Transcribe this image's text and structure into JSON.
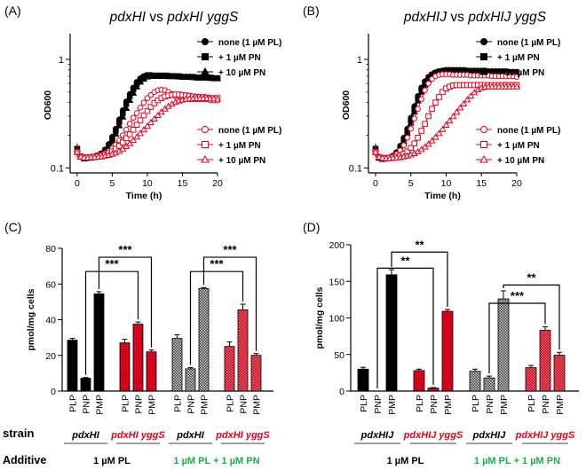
{
  "colors": {
    "black": "#000000",
    "red": "#e8001c",
    "green": "#19b04b"
  },
  "chart_data": [
    {
      "type": "line",
      "panel_label": "(A)",
      "title_parts": [
        "pdxHI",
        " vs ",
        "pdxHI yggS"
      ],
      "xlabel": "Time (h)",
      "ylabel": "OD600",
      "xlim": [
        -1,
        20
      ],
      "ylim": [
        0.09,
        1.6
      ],
      "yscale": "log",
      "xticks": [
        0,
        5,
        10,
        15,
        20
      ],
      "xtick_labels": [
        "0",
        "5",
        "10",
        "15",
        "20"
      ],
      "yticks": [
        0.1,
        1
      ],
      "ytick_labels": [
        "0.1",
        "1"
      ],
      "x": [
        0,
        0.5,
        1,
        1.5,
        2,
        2.5,
        3,
        3.5,
        4,
        4.5,
        5,
        5.5,
        6,
        6.5,
        7,
        7.5,
        8,
        8.5,
        9,
        9.5,
        10,
        10.5,
        11,
        11.5,
        12,
        12.5,
        13,
        13.5,
        14,
        14.5,
        15,
        15.5,
        16,
        16.5,
        17,
        17.5,
        18,
        18.5,
        19,
        19.5,
        20
      ],
      "legend_top": [
        "none (1 µM PL)",
        "+ 1 µM PN",
        "+ 10 µM PN"
      ],
      "legend_bottom": [
        "none (1 µM PL)",
        "+ 1 µM PN",
        "+ 10 µM PN"
      ],
      "series": [
        {
          "name": "pdxHI none (1 µM PL)",
          "marker": "circle",
          "fill": "filled",
          "color": "black",
          "values": [
            0.15,
            0.128,
            0.124,
            0.125,
            0.126,
            0.128,
            0.131,
            0.137,
            0.148,
            0.166,
            0.194,
            0.23,
            0.28,
            0.34,
            0.41,
            0.48,
            0.55,
            0.62,
            0.67,
            0.7,
            0.72,
            0.72,
            0.71,
            0.71,
            0.71,
            0.71,
            0.71,
            0.7,
            0.7,
            0.7,
            0.69,
            0.69,
            0.69,
            0.69,
            0.68,
            0.68,
            0.68,
            0.68,
            0.68,
            0.67,
            0.67
          ]
        },
        {
          "name": "pdxHI + 1 µM PN",
          "marker": "square",
          "fill": "filled",
          "color": "black",
          "values": [
            0.15,
            0.127,
            0.123,
            0.124,
            0.125,
            0.127,
            0.13,
            0.135,
            0.145,
            0.16,
            0.185,
            0.22,
            0.265,
            0.32,
            0.39,
            0.46,
            0.53,
            0.6,
            0.65,
            0.69,
            0.71,
            0.71,
            0.71,
            0.71,
            0.71,
            0.71,
            0.7,
            0.7,
            0.7,
            0.7,
            0.69,
            0.69,
            0.69,
            0.69,
            0.68,
            0.68,
            0.68,
            0.68,
            0.68,
            0.67,
            0.67
          ]
        },
        {
          "name": "pdxHI + 10 µM PN",
          "marker": "triangle",
          "fill": "filled",
          "color": "black",
          "values": [
            0.15,
            0.126,
            0.122,
            0.123,
            0.124,
            0.126,
            0.128,
            0.133,
            0.142,
            0.155,
            0.175,
            0.205,
            0.245,
            0.295,
            0.355,
            0.42,
            0.49,
            0.56,
            0.62,
            0.66,
            0.69,
            0.7,
            0.7,
            0.7,
            0.7,
            0.7,
            0.7,
            0.7,
            0.7,
            0.69,
            0.69,
            0.69,
            0.69,
            0.68,
            0.68,
            0.68,
            0.68,
            0.68,
            0.67,
            0.67,
            0.67
          ]
        },
        {
          "name": "pdxHI yggS none (1 µM PL)",
          "marker": "circle",
          "fill": "open",
          "color": "red",
          "values": [
            0.14,
            0.128,
            0.126,
            0.126,
            0.127,
            0.128,
            0.13,
            0.133,
            0.137,
            0.143,
            0.152,
            0.164,
            0.18,
            0.2,
            0.225,
            0.255,
            0.29,
            0.32,
            0.36,
            0.4,
            0.44,
            0.47,
            0.5,
            0.52,
            0.525,
            0.52,
            0.5,
            0.48,
            0.46,
            0.45,
            0.44,
            0.44,
            0.43,
            0.43,
            0.43,
            0.43,
            0.43,
            0.43,
            0.42,
            0.42,
            0.42
          ]
        },
        {
          "name": "pdxHI yggS + 1 µM PN",
          "marker": "square",
          "fill": "open",
          "color": "red",
          "values": [
            0.14,
            0.127,
            0.125,
            0.125,
            0.126,
            0.127,
            0.128,
            0.13,
            0.133,
            0.137,
            0.142,
            0.15,
            0.16,
            0.172,
            0.188,
            0.205,
            0.225,
            0.25,
            0.275,
            0.305,
            0.335,
            0.365,
            0.395,
            0.42,
            0.44,
            0.455,
            0.465,
            0.47,
            0.475,
            0.475,
            0.47,
            0.465,
            0.46,
            0.455,
            0.45,
            0.45,
            0.45,
            0.445,
            0.44,
            0.44,
            0.44
          ]
        },
        {
          "name": "pdxHI yggS + 10 µM PN",
          "marker": "triangle",
          "fill": "open",
          "color": "red",
          "values": [
            0.14,
            0.127,
            0.124,
            0.124,
            0.125,
            0.125,
            0.126,
            0.127,
            0.129,
            0.131,
            0.134,
            0.138,
            0.143,
            0.15,
            0.158,
            0.168,
            0.18,
            0.193,
            0.208,
            0.225,
            0.243,
            0.262,
            0.283,
            0.305,
            0.327,
            0.35,
            0.37,
            0.388,
            0.403,
            0.415,
            0.423,
            0.43,
            0.433,
            0.435,
            0.436,
            0.436,
            0.436,
            0.435,
            0.434,
            0.433,
            0.432
          ]
        }
      ]
    },
    {
      "type": "line",
      "panel_label": "(B)",
      "title_parts": [
        "pdxHIJ",
        " vs ",
        "pdxHIJ yggS"
      ],
      "xlabel": "Time (h)",
      "ylabel": "OD600",
      "xlim": [
        -1,
        20
      ],
      "ylim": [
        0.09,
        1.6
      ],
      "yscale": "log",
      "xticks": [
        0,
        5,
        10,
        15,
        20
      ],
      "xtick_labels": [
        "0",
        "5",
        "10",
        "15",
        "20"
      ],
      "yticks": [
        0.1,
        1
      ],
      "ytick_labels": [
        "0.1",
        "1"
      ],
      "x": [
        0,
        0.5,
        1,
        1.5,
        2,
        2.5,
        3,
        3.5,
        4,
        4.5,
        5,
        5.5,
        6,
        6.5,
        7,
        7.5,
        8,
        8.5,
        9,
        9.5,
        10,
        10.5,
        11,
        11.5,
        12,
        12.5,
        13,
        13.5,
        14,
        14.5,
        15,
        15.5,
        16,
        16.5,
        17,
        17.5,
        18,
        18.5,
        19,
        19.5,
        20
      ],
      "legend_top": [
        "none (1 µM PL)",
        "+ 1 µM PN",
        "+ 10 µM PN"
      ],
      "legend_bottom": [
        "none (1 µM PL)",
        "+ 1 µM PN",
        "+ 10 µM PN"
      ],
      "series": [
        {
          "name": "pdxHIJ none (1 µM PL)",
          "marker": "circle",
          "fill": "filled",
          "color": "black",
          "values": [
            0.15,
            0.125,
            0.122,
            0.123,
            0.125,
            0.13,
            0.14,
            0.16,
            0.19,
            0.23,
            0.29,
            0.37,
            0.46,
            0.55,
            0.63,
            0.69,
            0.73,
            0.76,
            0.78,
            0.79,
            0.8,
            0.8,
            0.8,
            0.8,
            0.8,
            0.8,
            0.79,
            0.79,
            0.79,
            0.79,
            0.79,
            0.79,
            0.78,
            0.78,
            0.78,
            0.78,
            0.78,
            0.78,
            0.77,
            0.77,
            0.77
          ]
        },
        {
          "name": "pdxHIJ + 1 µM PN",
          "marker": "square",
          "fill": "filled",
          "color": "black",
          "values": [
            0.15,
            0.124,
            0.121,
            0.122,
            0.124,
            0.128,
            0.137,
            0.155,
            0.183,
            0.22,
            0.275,
            0.35,
            0.44,
            0.53,
            0.61,
            0.67,
            0.72,
            0.75,
            0.77,
            0.78,
            0.79,
            0.79,
            0.79,
            0.79,
            0.79,
            0.79,
            0.78,
            0.78,
            0.78,
            0.78,
            0.78,
            0.78,
            0.77,
            0.77,
            0.77,
            0.77,
            0.77,
            0.77,
            0.76,
            0.76,
            0.76
          ]
        },
        {
          "name": "pdxHIJ + 10 µM PN",
          "marker": "triangle",
          "fill": "filled",
          "color": "black",
          "values": [
            0.15,
            0.124,
            0.121,
            0.122,
            0.123,
            0.127,
            0.135,
            0.15,
            0.175,
            0.21,
            0.26,
            0.33,
            0.415,
            0.5,
            0.58,
            0.65,
            0.7,
            0.74,
            0.76,
            0.77,
            0.78,
            0.78,
            0.78,
            0.78,
            0.78,
            0.78,
            0.77,
            0.77,
            0.77,
            0.77,
            0.77,
            0.77,
            0.76,
            0.76,
            0.76,
            0.76,
            0.76,
            0.76,
            0.75,
            0.75,
            0.75
          ]
        },
        {
          "name": "pdxHIJ yggS none (1 µM PL)",
          "marker": "circle",
          "fill": "open",
          "color": "red",
          "values": [
            0.14,
            0.127,
            0.124,
            0.124,
            0.125,
            0.128,
            0.134,
            0.145,
            0.162,
            0.19,
            0.23,
            0.285,
            0.35,
            0.43,
            0.52,
            0.6,
            0.66,
            0.7,
            0.72,
            0.73,
            0.73,
            0.73,
            0.72,
            0.72,
            0.72,
            0.72,
            0.72,
            0.71,
            0.71,
            0.71,
            0.71,
            0.71,
            0.71,
            0.7,
            0.7,
            0.7,
            0.7,
            0.7,
            0.7,
            0.7,
            0.69
          ]
        },
        {
          "name": "pdxHIJ yggS + 1 µM PN",
          "marker": "square",
          "fill": "open",
          "color": "red",
          "values": [
            0.14,
            0.126,
            0.123,
            0.123,
            0.124,
            0.125,
            0.127,
            0.13,
            0.135,
            0.142,
            0.153,
            0.168,
            0.19,
            0.22,
            0.255,
            0.3,
            0.35,
            0.4,
            0.45,
            0.5,
            0.54,
            0.56,
            0.575,
            0.58,
            0.58,
            0.58,
            0.58,
            0.58,
            0.58,
            0.58,
            0.58,
            0.58,
            0.58,
            0.58,
            0.58,
            0.58,
            0.58,
            0.58,
            0.58,
            0.58,
            0.58
          ]
        },
        {
          "name": "pdxHIJ yggS + 10 µM PN",
          "marker": "triangle",
          "fill": "open",
          "color": "red",
          "values": [
            0.14,
            0.126,
            0.123,
            0.122,
            0.122,
            0.123,
            0.124,
            0.125,
            0.127,
            0.129,
            0.132,
            0.136,
            0.141,
            0.148,
            0.156,
            0.166,
            0.178,
            0.192,
            0.208,
            0.227,
            0.248,
            0.272,
            0.298,
            0.327,
            0.358,
            0.39,
            0.425,
            0.46,
            0.495,
            0.525,
            0.545,
            0.555,
            0.56,
            0.56,
            0.56,
            0.56,
            0.56,
            0.56,
            0.56,
            0.56,
            0.56
          ]
        }
      ]
    },
    {
      "type": "bar",
      "panel_label": "(C)",
      "ylabel": "pmol/mg cells",
      "ylim": [
        0,
        80
      ],
      "yticks": [
        0,
        20,
        40,
        60,
        80
      ],
      "ytick_labels": [
        "0",
        "20",
        "40",
        "60",
        "80"
      ],
      "groups": [
        {
          "strain_label": "pdxHI",
          "color": "black",
          "pattern": "solid",
          "categories": [
            "PLP",
            "PNP",
            "PMP"
          ],
          "values": [
            28.5,
            7.2,
            54.5
          ],
          "errors": [
            1.0,
            0.4,
            1.2
          ]
        },
        {
          "strain_label": "pdxHI yggS",
          "color": "red",
          "pattern": "dotted",
          "categories": [
            "PLP",
            "PNP",
            "PMP"
          ],
          "values": [
            27.0,
            37.5,
            22.0
          ],
          "errors": [
            2.0,
            1.2,
            1.0
          ]
        },
        {
          "strain_label": "pdxHI",
          "color": "black",
          "pattern": "check",
          "categories": [
            "PLP",
            "PNP",
            "PMP"
          ],
          "values": [
            29.5,
            12.5,
            57.5
          ],
          "errors": [
            2.0,
            0.7,
            0.5
          ]
        },
        {
          "strain_label": "pdxHI yggS",
          "color": "red",
          "pattern": "check",
          "categories": [
            "PLP",
            "PNP",
            "PMP"
          ],
          "values": [
            25.0,
            45.5,
            20.0
          ],
          "errors": [
            2.5,
            3.2,
            1.0
          ]
        }
      ],
      "significance": [
        {
          "from": [
            0,
            1
          ],
          "to": [
            1,
            1
          ],
          "label": "***",
          "level": 67
        },
        {
          "from": [
            0,
            2
          ],
          "to": [
            1,
            2
          ],
          "label": "***",
          "level": 75
        },
        {
          "from": [
            2,
            1
          ],
          "to": [
            3,
            1
          ],
          "label": "***",
          "level": 67
        },
        {
          "from": [
            2,
            2
          ],
          "to": [
            3,
            2
          ],
          "label": "***",
          "level": 75
        }
      ],
      "strain_row_label": "strain",
      "additive_row_label": "Additive",
      "additives": [
        {
          "label": "1 µM PL",
          "color": "black"
        },
        {
          "label": "1 µM PL + 1 µM PN",
          "color": "green"
        }
      ]
    },
    {
      "type": "bar",
      "panel_label": "(D)",
      "ylabel": "pmol/mg cells",
      "ylim": [
        0,
        200
      ],
      "yticks": [
        0,
        50,
        100,
        150,
        200
      ],
      "ytick_labels": [
        "0",
        "50",
        "100",
        "150",
        "200"
      ],
      "groups": [
        {
          "strain_label": "pdxHIJ",
          "color": "black",
          "pattern": "solid",
          "categories": [
            "PLP",
            "PNP",
            "PMP"
          ],
          "values": [
            30.0,
            0,
            159.0
          ],
          "errors": [
            2.5,
            0,
            7.0
          ]
        },
        {
          "strain_label": "pdxHIJ yggS",
          "color": "red",
          "pattern": "dotted",
          "categories": [
            "PLP",
            "PNP",
            "PMP"
          ],
          "values": [
            28.0,
            4.0,
            109.0
          ],
          "errors": [
            2.0,
            0.8,
            2.5
          ]
        },
        {
          "strain_label": "pdxHIJ",
          "color": "black",
          "pattern": "check",
          "categories": [
            "PLP",
            "PNP",
            "PMP"
          ],
          "values": [
            27.0,
            18.0,
            126.0
          ],
          "errors": [
            3.0,
            2.5,
            11.0
          ]
        },
        {
          "strain_label": "pdxHIJ yggS",
          "color": "red",
          "pattern": "check",
          "categories": [
            "PLP",
            "PNP",
            "PMP"
          ],
          "values": [
            32.0,
            83.0,
            49.0
          ],
          "errors": [
            3.0,
            5.0,
            4.0
          ]
        }
      ],
      "significance": [
        {
          "from": [
            0,
            1
          ],
          "to": [
            1,
            1
          ],
          "label": "**",
          "level": 168
        },
        {
          "from": [
            0,
            2
          ],
          "to": [
            1,
            2
          ],
          "label": "**",
          "level": 190
        },
        {
          "from": [
            2,
            1
          ],
          "to": [
            3,
            1
          ],
          "label": "***",
          "level": 120
        },
        {
          "from": [
            2,
            2
          ],
          "to": [
            3,
            2
          ],
          "label": "**",
          "level": 145
        }
      ],
      "strain_row_label": "strain",
      "additive_row_label": "Additive",
      "additives": [
        {
          "label": "1 µM PL",
          "color": "black"
        },
        {
          "label": "1 µM PL + 1 µM PN",
          "color": "green"
        }
      ]
    }
  ]
}
